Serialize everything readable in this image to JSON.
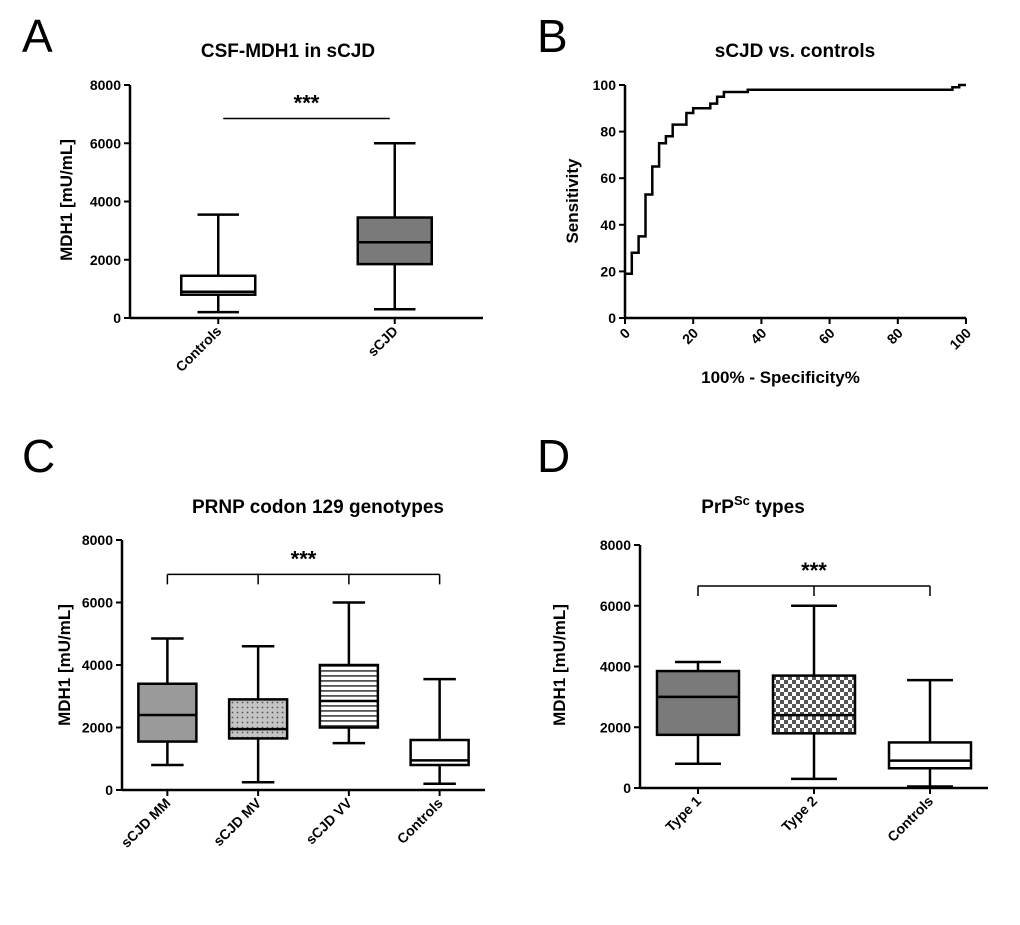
{
  "figure": {
    "background": "#ffffff"
  },
  "chart_data": [
    {
      "panel": "A",
      "type": "box",
      "title": "CSF-MDH1 in sCJD",
      "ylabel": "MDH1 [mU/mL]",
      "xlabel": "",
      "ylim": [
        0,
        8000
      ],
      "yticks": [
        0,
        2000,
        4000,
        6000,
        8000
      ],
      "categories": [
        "Controls",
        "sCJD"
      ],
      "boxes": [
        {
          "label": "Controls",
          "min": 200,
          "q1": 800,
          "median": 900,
          "q3": 1450,
          "max": 3550,
          "fill": "#ffffff",
          "pattern": "none"
        },
        {
          "label": "sCJD",
          "min": 300,
          "q1": 1850,
          "median": 2600,
          "q3": 3450,
          "max": 6000,
          "fill": "#7a7a7a",
          "pattern": "none"
        }
      ],
      "significance": {
        "text": "***",
        "from": 0,
        "to": 1,
        "y": 6850,
        "ticks": false
      }
    },
    {
      "panel": "B",
      "type": "line",
      "title": "sCJD vs. controls",
      "xlabel": "100% - Specificity%",
      "ylabel": "Sensitivity",
      "xlim": [
        0,
        100
      ],
      "ylim": [
        0,
        100
      ],
      "xticks": [
        0,
        20,
        40,
        60,
        80,
        100
      ],
      "yticks": [
        0,
        20,
        40,
        60,
        80,
        100
      ],
      "series": [
        {
          "name": "ROC",
          "points": [
            [
              0,
              19
            ],
            [
              2,
              19
            ],
            [
              2,
              28
            ],
            [
              4,
              28
            ],
            [
              4,
              35
            ],
            [
              6,
              35
            ],
            [
              6,
              53
            ],
            [
              8,
              53
            ],
            [
              8,
              65
            ],
            [
              10,
              65
            ],
            [
              10,
              75
            ],
            [
              12,
              75
            ],
            [
              12,
              78
            ],
            [
              14,
              78
            ],
            [
              14,
              83
            ],
            [
              18,
              83
            ],
            [
              18,
              88
            ],
            [
              20,
              88
            ],
            [
              20,
              90
            ],
            [
              25,
              90
            ],
            [
              25,
              92
            ],
            [
              27,
              92
            ],
            [
              27,
              95
            ],
            [
              29,
              95
            ],
            [
              29,
              97
            ],
            [
              36,
              97
            ],
            [
              36,
              98
            ],
            [
              96,
              98
            ],
            [
              96,
              99
            ],
            [
              98,
              99
            ],
            [
              98,
              100
            ],
            [
              100,
              100
            ]
          ]
        }
      ]
    },
    {
      "panel": "C",
      "type": "box",
      "title": "PRNP codon 129 genotypes",
      "ylabel": "MDH1 [mU/mL]",
      "xlabel": "",
      "ylim": [
        0,
        8000
      ],
      "yticks": [
        0,
        2000,
        4000,
        6000,
        8000
      ],
      "categories": [
        "sCJD MM",
        "sCJD MV",
        "sCJD VV",
        "Controls"
      ],
      "boxes": [
        {
          "label": "sCJD MM",
          "min": 800,
          "q1": 1550,
          "median": 2400,
          "q3": 3400,
          "max": 4850,
          "fill": "#9a9a9a",
          "pattern": "none"
        },
        {
          "label": "sCJD MV",
          "min": 250,
          "q1": 1650,
          "median": 1950,
          "q3": 2900,
          "max": 4600,
          "fill": "#bdbdbd",
          "pattern": "dots"
        },
        {
          "label": "sCJD VV",
          "min": 1500,
          "q1": 2000,
          "median": 2850,
          "q3": 4000,
          "max": 6000,
          "fill": "#ffffff",
          "pattern": "hlines"
        },
        {
          "label": "Controls",
          "min": 200,
          "q1": 800,
          "median": 950,
          "q3": 1600,
          "max": 3550,
          "fill": "#ffffff",
          "pattern": "none"
        }
      ],
      "significance": {
        "text": "***",
        "from": 0,
        "to": 3,
        "y": 6900,
        "ticks": true,
        "inner_ticks": [
          1,
          2
        ]
      }
    },
    {
      "panel": "D",
      "type": "box",
      "title_main": "PrP",
      "title_sup": "Sc",
      "title_rest": " types",
      "ylabel": "MDH1 [mU/mL]",
      "xlabel": "",
      "ylim": [
        0,
        8000
      ],
      "yticks": [
        0,
        2000,
        4000,
        6000,
        8000
      ],
      "categories": [
        "Type 1",
        "Type 2",
        "Controls"
      ],
      "boxes": [
        {
          "label": "Type 1",
          "min": 800,
          "q1": 1750,
          "median": 3000,
          "q3": 3850,
          "max": 4150,
          "fill": "#7a7a7a",
          "pattern": "none"
        },
        {
          "label": "Type 2",
          "min": 300,
          "q1": 1800,
          "median": 2400,
          "q3": 3700,
          "max": 6000,
          "fill": "#ffffff",
          "pattern": "checker"
        },
        {
          "label": "Controls",
          "min": 50,
          "q1": 650,
          "median": 900,
          "q3": 1500,
          "max": 3550,
          "fill": "#ffffff",
          "pattern": "none"
        }
      ],
      "significance": {
        "text": "***",
        "from": 0,
        "to": 2,
        "y": 6650,
        "ticks": true,
        "inner_ticks": [
          1
        ]
      }
    }
  ],
  "panel_letters": [
    "A",
    "B",
    "C",
    "D"
  ]
}
